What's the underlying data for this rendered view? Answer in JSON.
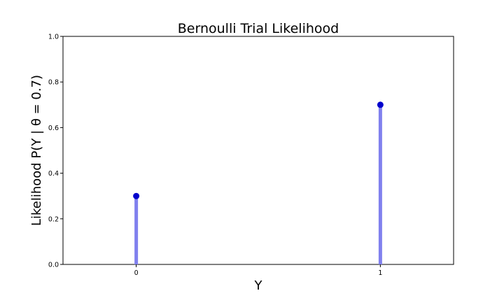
{
  "chart_data": {
    "type": "stem",
    "title": "Bernoulli Trial Likelihood",
    "xlabel": "Y",
    "ylabel": "Likelihood P(Y | θ = 0.7)",
    "categories": [
      "0",
      "1"
    ],
    "x": [
      0,
      1
    ],
    "values": [
      0.3,
      0.7
    ],
    "xlim": [
      -0.3,
      1.3
    ],
    "ylim": [
      0,
      1.0
    ],
    "yticks": [
      0.0,
      0.2,
      0.4,
      0.6,
      0.8,
      1.0
    ],
    "ytick_labels": [
      "0.0",
      "0.2",
      "0.4",
      "0.6",
      "0.8",
      "1.0"
    ],
    "xticks": [
      0,
      1
    ],
    "xtick_labels": [
      "0",
      "1"
    ],
    "grid": false,
    "colors": {
      "stem": "#8080ee",
      "marker": "#0000cc"
    }
  }
}
